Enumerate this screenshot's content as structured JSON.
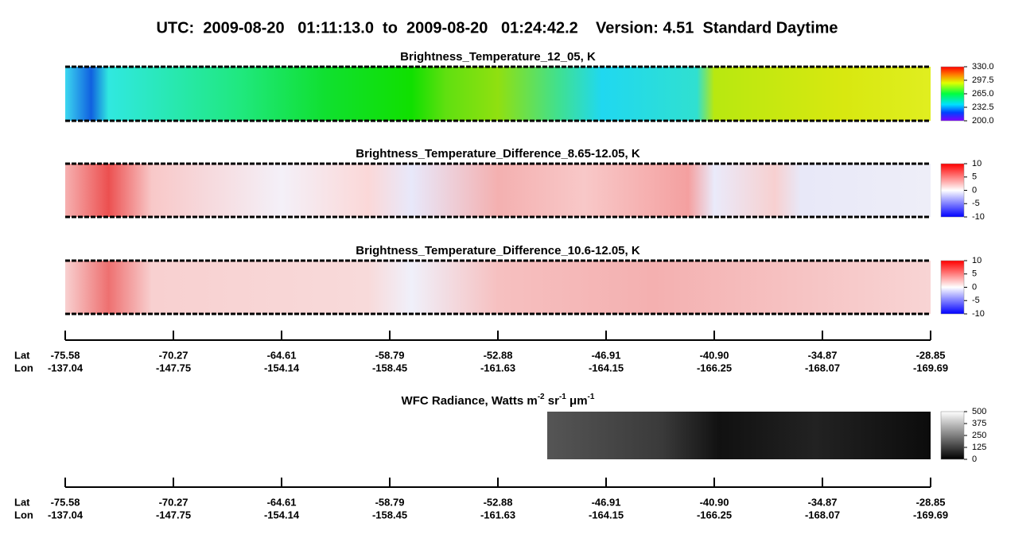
{
  "title": "UTC:  2009-08-20   01:11:13.0  to  2009-08-20   01:24:42.2    Version: 4.51  Standard Daytime",
  "panels": [
    {
      "title": "Brightness_Temperature_12_05, K",
      "lim": [
        200,
        330
      ],
      "ticks": [
        {
          "value": 330,
          "label": "330.0"
        },
        297.5,
        {
          "value": 265,
          "label": "265.0"
        },
        232.5,
        {
          "value": 200,
          "label": "200.0"
        }
      ]
    },
    {
      "title": "Brightness_Temperature_Difference_8.65-12.05, K",
      "lim": [
        -10,
        10
      ],
      "ticks": [
        10,
        5,
        0,
        -5,
        -10
      ]
    },
    {
      "title": "Brightness_Temperature_Difference_10.6-12.05, K",
      "lim": [
        -10,
        10
      ],
      "ticks": [
        10,
        5,
        0,
        -5,
        -10
      ]
    },
    {
      "title_parts": [
        "WFC Radiance, Watts m",
        "-2",
        " sr",
        "-1",
        " μm",
        "-1"
      ],
      "lim": [
        0,
        500
      ],
      "ticks": [
        500,
        375,
        250,
        125,
        0
      ]
    }
  ],
  "axis": {
    "row_labels": [
      "Lat",
      "Lon"
    ],
    "lat": [
      "-75.58",
      "-70.27",
      "-64.61",
      "-58.79",
      "-52.88",
      "-46.91",
      "-40.90",
      "-34.87",
      "-28.85"
    ],
    "lon": [
      "-137.04",
      "-147.75",
      "-154.14",
      "-158.45",
      "-161.63",
      "-164.15",
      "-166.25",
      "-168.07",
      "-169.69"
    ]
  }
}
